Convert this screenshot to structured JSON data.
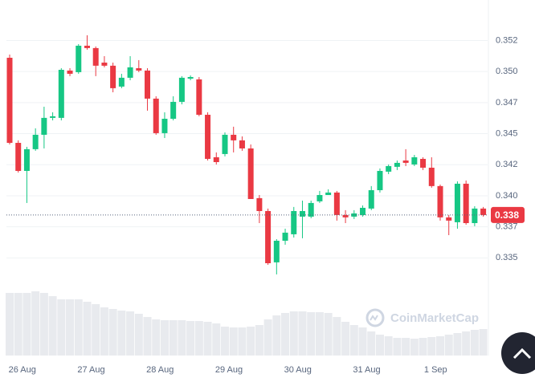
{
  "chart_data": {
    "type": "candlestick",
    "categories": [
      null,
      "26 Aug",
      null,
      null,
      null,
      null,
      null,
      null,
      null,
      "27 Aug",
      null,
      null,
      null,
      null,
      null,
      null,
      null,
      "28 Aug",
      null,
      null,
      null,
      null,
      null,
      null,
      null,
      "29 Aug",
      null,
      null,
      null,
      null,
      null,
      null,
      null,
      "30 Aug",
      null,
      null,
      null,
      null,
      null,
      null,
      null,
      "31 Aug",
      null,
      null,
      null,
      null,
      null,
      null,
      null,
      "1 Sep",
      null,
      null,
      null,
      null,
      null,
      null
    ],
    "open": [
      0.35111,
      0.34426,
      0.342,
      0.34375,
      0.34491,
      0.34627,
      0.34627,
      0.35008,
      0.34995,
      0.35208,
      0.35189,
      0.35072,
      0.35047,
      0.34879,
      0.3495,
      0.35027,
      0.35008,
      0.34782,
      0.34504,
      0.3462,
      0.34756,
      0.34943,
      0.34937,
      0.34652,
      0.3431,
      0.34336,
      0.34491,
      0.34446,
      0.34381,
      0.33981,
      0.33877,
      0.33464,
      0.33638,
      0.3369,
      0.33832,
      0.33832,
      0.33955,
      0.34006,
      0.34026,
      0.33845,
      0.33832,
      0.33845,
      0.33897,
      0.34045,
      0.34194,
      0.34233,
      0.34284,
      0.34252,
      0.34297,
      0.34226,
      0.34078,
      0.33826,
      0.33787,
      0.34097,
      0.3378,
      0.33897
    ],
    "high": [
      0.35137,
      0.34446,
      0.34394,
      0.34543,
      0.34717,
      0.34672,
      0.35027,
      0.35027,
      0.35221,
      0.35292,
      0.35202,
      0.35124,
      0.35072,
      0.34982,
      0.35124,
      0.35092,
      0.35027,
      0.34801,
      0.34672,
      0.34801,
      0.34963,
      0.34969,
      0.34956,
      0.34672,
      0.34349,
      0.3451,
      0.34556,
      0.34478,
      0.34413,
      0.34006,
      0.33897,
      0.33651,
      0.33735,
      0.3391,
      0.33961,
      0.33961,
      0.34039,
      0.34052,
      0.34039,
      0.33884,
      0.33884,
      0.33922,
      0.34078,
      0.3422,
      0.34252,
      0.34284,
      0.34375,
      0.34329,
      0.3431,
      0.3431,
      0.3409,
      0.33845,
      0.34116,
      0.34123,
      0.33916,
      0.3391
    ],
    "low": [
      0.34413,
      0.34187,
      0.33942,
      0.34362,
      0.34381,
      0.34607,
      0.34607,
      0.34963,
      0.34982,
      0.35176,
      0.34963,
      0.35034,
      0.34833,
      0.34866,
      0.3493,
      0.34995,
      0.34685,
      0.34491,
      0.34465,
      0.34607,
      0.34736,
      0.3493,
      0.3464,
      0.34284,
      0.34252,
      0.34317,
      0.34349,
      0.34362,
      0.33974,
      0.3378,
      0.33444,
      0.33367,
      0.33606,
      0.33664,
      0.33658,
      0.33819,
      0.33942,
      0.34026,
      0.338,
      0.3378,
      0.33813,
      0.33832,
      0.33884,
      0.34026,
      0.34174,
      0.34207,
      0.34239,
      0.34239,
      0.34207,
      0.34065,
      0.338,
      0.33683,
      0.33735,
      0.33767,
      0.33755,
      0.33832
    ],
    "close": [
      0.34426,
      0.342,
      0.34375,
      0.34491,
      0.34627,
      0.3464,
      0.35014,
      0.34982,
      0.35208,
      0.35189,
      0.35047,
      0.35047,
      0.34866,
      0.3495,
      0.35034,
      0.35008,
      0.34782,
      0.34504,
      0.3462,
      0.34756,
      0.3495,
      0.34956,
      0.34652,
      0.34297,
      0.34271,
      0.34491,
      0.34446,
      0.34381,
      0.33974,
      0.33877,
      0.33457,
      0.33638,
      0.33703,
      0.33877,
      0.33877,
      0.33942,
      0.34006,
      0.34026,
      0.33845,
      0.33826,
      0.33858,
      0.33903,
      0.34045,
      0.342,
      0.34239,
      0.34265,
      0.34265,
      0.3431,
      0.34226,
      0.34078,
      0.33826,
      0.338,
      0.34097,
      0.3378,
      0.33897,
      0.33845
    ],
    "volume": [
      78,
      78,
      78,
      80,
      78,
      74,
      70,
      70,
      70,
      67,
      64,
      60,
      58,
      56,
      55,
      52,
      48,
      45,
      44,
      44,
      44,
      43,
      43,
      42,
      40,
      36,
      35,
      35,
      36,
      38,
      45,
      50,
      53,
      55,
      55,
      54,
      54,
      53,
      48,
      42,
      38,
      35,
      30,
      26,
      24,
      22,
      22,
      21,
      22,
      23,
      24,
      26,
      28,
      30,
      32,
      33
    ],
    "up_color": "#16c784",
    "down_color": "#ea3943",
    "volume_color": "#e8eaee",
    "ylim": [
      0.32714,
      0.35576
    ],
    "yticks": [
      {
        "value": 0.3525,
        "label": "0.352"
      },
      {
        "value": 0.35,
        "label": "0.350"
      },
      {
        "value": 0.3475,
        "label": "0.347"
      },
      0.345,
      {
        "value": 0.3425,
        "label": "0.342"
      },
      {
        "value": 0.34,
        "label": "0.340"
      },
      {
        "value": 0.3375,
        "label": "0.337"
      },
      0.335
    ],
    "grid": true,
    "current_price": {
      "value": 0.33845,
      "label": "0.338"
    },
    "watermark": "CoinMarketCap"
  }
}
